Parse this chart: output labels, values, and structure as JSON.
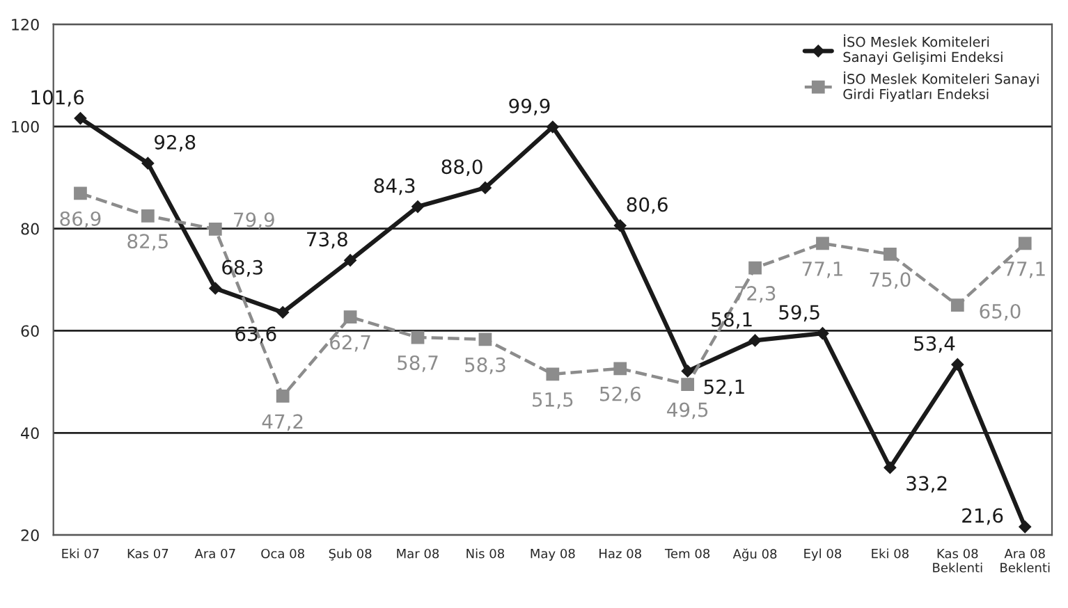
{
  "chart_data": {
    "type": "line",
    "categories": [
      "Eki 07",
      "Kas 07",
      "Ara 07",
      "Oca 08",
      "Şub 08",
      "Mar 08",
      "Nis 08",
      "May 08",
      "Haz 08",
      "Tem 08",
      "Ağu 08",
      "Eyl 08",
      "Eki 08",
      "Kas 08\nBeklenti",
      "Ara 08\nBeklenti"
    ],
    "series": [
      {
        "name": "İSO Meslek Komiteleri\nSanayi Gelişimi Endeksi",
        "color": "#1a1a1a",
        "line_style": "solid",
        "marker": "diamond",
        "values": [
          101.6,
          92.8,
          68.3,
          63.6,
          73.8,
          84.3,
          88.0,
          99.9,
          80.6,
          52.1,
          58.1,
          59.5,
          33.2,
          53.4,
          21.6
        ],
        "value_labels": [
          "101,6",
          "92,8",
          "68,3",
          "63,6",
          "73,8",
          "84,3",
          "88,0",
          "99,9",
          "80,6",
          "52,1",
          "58,1",
          "59,5",
          "33,2",
          "53,4",
          "21,6"
        ]
      },
      {
        "name": "İSO Meslek Komiteleri Sanayi\nGirdi Fiyatları Endeksi",
        "color": "#8c8c8c",
        "line_style": "dashed",
        "marker": "square",
        "values": [
          86.9,
          82.5,
          79.9,
          47.2,
          62.7,
          58.7,
          58.3,
          51.5,
          52.6,
          49.5,
          72.3,
          77.1,
          75.0,
          65.0,
          77.1
        ],
        "value_labels": [
          "86,9",
          "82,5",
          "79,9",
          "47,2",
          "62,7",
          "58,7",
          "58,3",
          "51,5",
          "52,6",
          "49,5",
          "72,3",
          "77,1",
          "75,0",
          "65,0",
          "77,1"
        ]
      }
    ],
    "ylim": [
      20,
      120
    ],
    "yticks": [
      20,
      40,
      60,
      80,
      100,
      120
    ],
    "grid": "y",
    "legend": "top right"
  }
}
